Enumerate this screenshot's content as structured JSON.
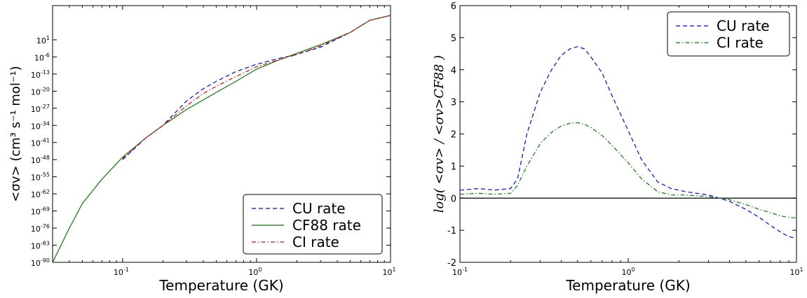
{
  "chart_data": [
    {
      "type": "line",
      "xlabel": "Temperature (GK)",
      "ylabel": "<σv> (cm³ s⁻¹ mol⁻¹)",
      "xscale": "log",
      "yscale": "log",
      "xlim": [
        0.03,
        10
      ],
      "ylim_exponent": [
        -90,
        15
      ],
      "x_ticks": [
        {
          "base": "10",
          "exp": "-1"
        },
        {
          "base": "10",
          "exp": "0"
        },
        {
          "base": "10",
          "exp": "1"
        }
      ],
      "y_ticks": [
        {
          "base": "10",
          "exp": "1",
          "v": 1
        },
        {
          "base": "10",
          "exp": "-6",
          "v": -6
        },
        {
          "base": "10",
          "exp": "-13",
          "v": -13
        },
        {
          "base": "10",
          "exp": "-20",
          "v": -20
        },
        {
          "base": "10",
          "exp": "-27",
          "v": -27
        },
        {
          "base": "10",
          "exp": "-34",
          "v": -34
        },
        {
          "base": "10",
          "exp": "-41",
          "v": -41
        },
        {
          "base": "10",
          "exp": "-48",
          "v": -48
        },
        {
          "base": "10",
          "exp": "-55",
          "v": -55
        },
        {
          "base": "10",
          "exp": "-62",
          "v": -62
        },
        {
          "base": "10",
          "exp": "-69",
          "v": -69
        },
        {
          "base": "10",
          "exp": "-76",
          "v": -76
        },
        {
          "base": "10",
          "exp": "-83",
          "v": -83
        },
        {
          "base": "10",
          "exp": "-90",
          "v": -90
        }
      ],
      "legend_position": "bottom-right",
      "series": [
        {
          "name": "CU rate",
          "color": "#0000ff",
          "dash": "dashed",
          "x": [
            0.1,
            0.15,
            0.2,
            0.25,
            0.3,
            0.4,
            0.5,
            0.7,
            1.0,
            1.5,
            2.0,
            3.0,
            5.0,
            7.0,
            10.0
          ],
          "y_log10": [
            -48,
            -39,
            -34,
            -28.5,
            -24,
            -19,
            -16,
            -12,
            -9,
            -6.5,
            -5,
            -2,
            4,
            9,
            11
          ]
        },
        {
          "name": "CF88 rate",
          "color": "#008000",
          "dash": "solid",
          "x": [
            0.03,
            0.04,
            0.05,
            0.07,
            0.1,
            0.15,
            0.2,
            0.3,
            0.5,
            0.7,
            1.0,
            1.5,
            2.0,
            3.0,
            5.0,
            7.0,
            10.0
          ],
          "y_log10": [
            -90,
            -76,
            -66,
            -56,
            -47,
            -39,
            -34,
            -27.5,
            -20.5,
            -16,
            -11,
            -7,
            -4.5,
            -1,
            4,
            9,
            11
          ]
        },
        {
          "name": "CI rate",
          "color": "#ff0000",
          "dash": "dashdot",
          "x": [
            0.1,
            0.15,
            0.2,
            0.3,
            0.4,
            0.5,
            0.7,
            1.0,
            1.5,
            2.0,
            3.0,
            5.0,
            7.0,
            10.0
          ],
          "y_log10": [
            -47.5,
            -39,
            -34,
            -26,
            -21,
            -18,
            -14,
            -10,
            -7,
            -5,
            -1.5,
            4,
            9,
            11
          ]
        }
      ]
    },
    {
      "type": "line",
      "xlabel": "Temperature (GK)",
      "ylabel": "log( <σv> / <σv>CF88 )",
      "xscale": "log",
      "xlim": [
        0.1,
        10
      ],
      "ylim": [
        -2,
        6
      ],
      "x_ticks": [
        {
          "base": "10",
          "exp": "-1"
        },
        {
          "base": "10",
          "exp": "0"
        },
        {
          "base": "10",
          "exp": "1"
        }
      ],
      "y_ticks": [
        "-2",
        "-1",
        "0",
        "1",
        "2",
        "3",
        "4",
        "5",
        "6"
      ],
      "legend_position": "top-right",
      "reference_line": {
        "y": 0,
        "color": "#000000"
      },
      "series": [
        {
          "name": "CU rate",
          "color": "#0000ff",
          "dash": "dashed",
          "x": [
            0.1,
            0.13,
            0.16,
            0.2,
            0.22,
            0.25,
            0.3,
            0.35,
            0.4,
            0.45,
            0.5,
            0.55,
            0.6,
            0.7,
            0.8,
            1.0,
            1.2,
            1.5,
            1.8,
            2.2,
            3.0,
            4.0,
            5.0,
            6.0,
            7.0,
            8.0,
            9.0,
            10.0
          ],
          "y": [
            0.25,
            0.3,
            0.25,
            0.3,
            0.6,
            2.0,
            3.3,
            4.0,
            4.45,
            4.65,
            4.72,
            4.65,
            4.4,
            3.9,
            3.2,
            2.1,
            1.2,
            0.5,
            0.3,
            0.2,
            0.1,
            -0.1,
            -0.35,
            -0.6,
            -0.85,
            -1.05,
            -1.2,
            -1.25
          ]
        },
        {
          "name": "CI rate",
          "color": "#008000",
          "dash": "dashdot",
          "x": [
            0.1,
            0.13,
            0.16,
            0.2,
            0.22,
            0.25,
            0.3,
            0.35,
            0.4,
            0.45,
            0.5,
            0.55,
            0.6,
            0.7,
            0.8,
            1.0,
            1.2,
            1.5,
            1.8,
            2.2,
            3.0,
            4.0,
            5.0,
            6.0,
            7.0,
            8.0,
            9.0,
            10.0
          ],
          "y": [
            0.12,
            0.15,
            0.12,
            0.15,
            0.4,
            1.0,
            1.7,
            2.05,
            2.25,
            2.33,
            2.35,
            2.3,
            2.2,
            1.95,
            1.65,
            1.1,
            0.6,
            0.2,
            0.1,
            0.1,
            0.05,
            -0.05,
            -0.2,
            -0.35,
            -0.45,
            -0.55,
            -0.6,
            -0.62
          ]
        }
      ]
    }
  ]
}
